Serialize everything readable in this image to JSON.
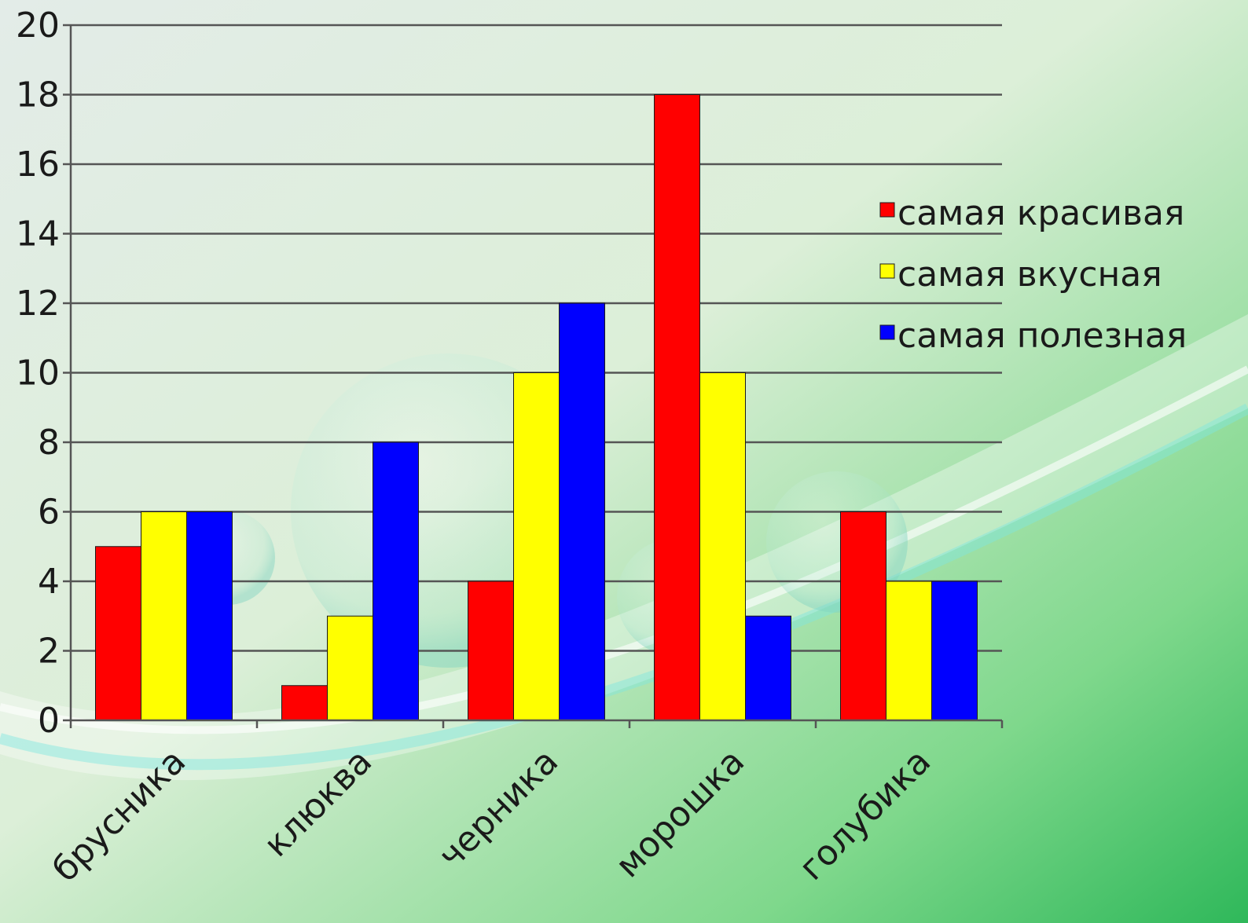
{
  "chart_data": {
    "type": "bar",
    "title": "",
    "xlabel": "",
    "ylabel": "",
    "ylim": [
      0,
      20
    ],
    "yticks": [
      0,
      2,
      4,
      6,
      8,
      10,
      12,
      14,
      16,
      18,
      20
    ],
    "grid": true,
    "legend_position": "right",
    "categories": [
      "брусника",
      "клюква",
      "черника",
      "морошка",
      "голубика"
    ],
    "series": [
      {
        "name": "самая красивая",
        "color": "#ff0000",
        "values": [
          5,
          1,
          4,
          18,
          6
        ]
      },
      {
        "name": "самая вкусная",
        "color": "#ffff00",
        "values": [
          6,
          3,
          10,
          10,
          4
        ]
      },
      {
        "name": "самая полезная",
        "color": "#0000ff",
        "values": [
          6,
          8,
          12,
          3,
          4
        ]
      }
    ]
  }
}
